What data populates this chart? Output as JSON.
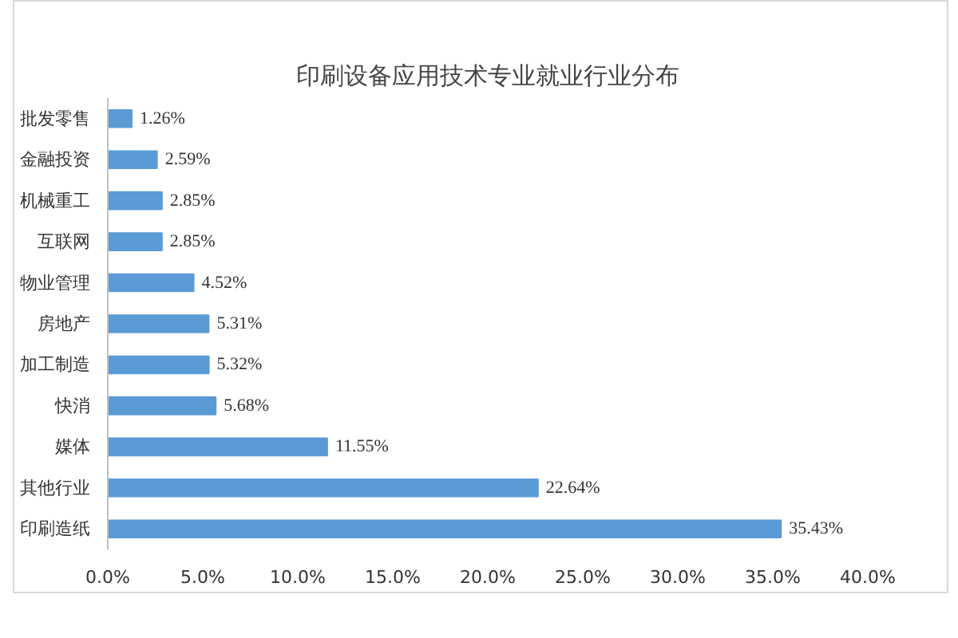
{
  "chart_data": {
    "type": "bar",
    "orientation": "horizontal",
    "title": "印刷设备应用技术专业就业行业分布",
    "categories": [
      "批发零售",
      "金融投资",
      "机械重工",
      "互联网",
      "物业管理",
      "房地产",
      "加工制造",
      "快消",
      "媒体",
      "其他行业",
      "印刷造纸"
    ],
    "values": [
      1.26,
      2.59,
      2.85,
      2.85,
      4.52,
      5.31,
      5.32,
      5.68,
      11.55,
      22.64,
      35.43
    ],
    "value_labels": [
      "1.26%",
      "2.59%",
      "2.85%",
      "2.85%",
      "4.52%",
      "5.31%",
      "5.32%",
      "5.68%",
      "11.55%",
      "22.64%",
      "35.43%"
    ],
    "color": "#5b9bd5",
    "xlim": [
      0,
      40
    ],
    "xticks": [
      {
        "value": 0,
        "label": "0.0%"
      },
      {
        "value": 5,
        "label": "5.0%"
      },
      {
        "value": 10,
        "label": "10.0%"
      },
      {
        "value": 15,
        "label": "15.0%"
      },
      {
        "value": 20,
        "label": "20.0%"
      },
      {
        "value": 25,
        "label": "25.0%"
      },
      {
        "value": 30,
        "label": "30.0%"
      },
      {
        "value": 35,
        "label": "35.0%"
      },
      {
        "value": 40,
        "label": "40.0%"
      }
    ],
    "grid": false
  }
}
